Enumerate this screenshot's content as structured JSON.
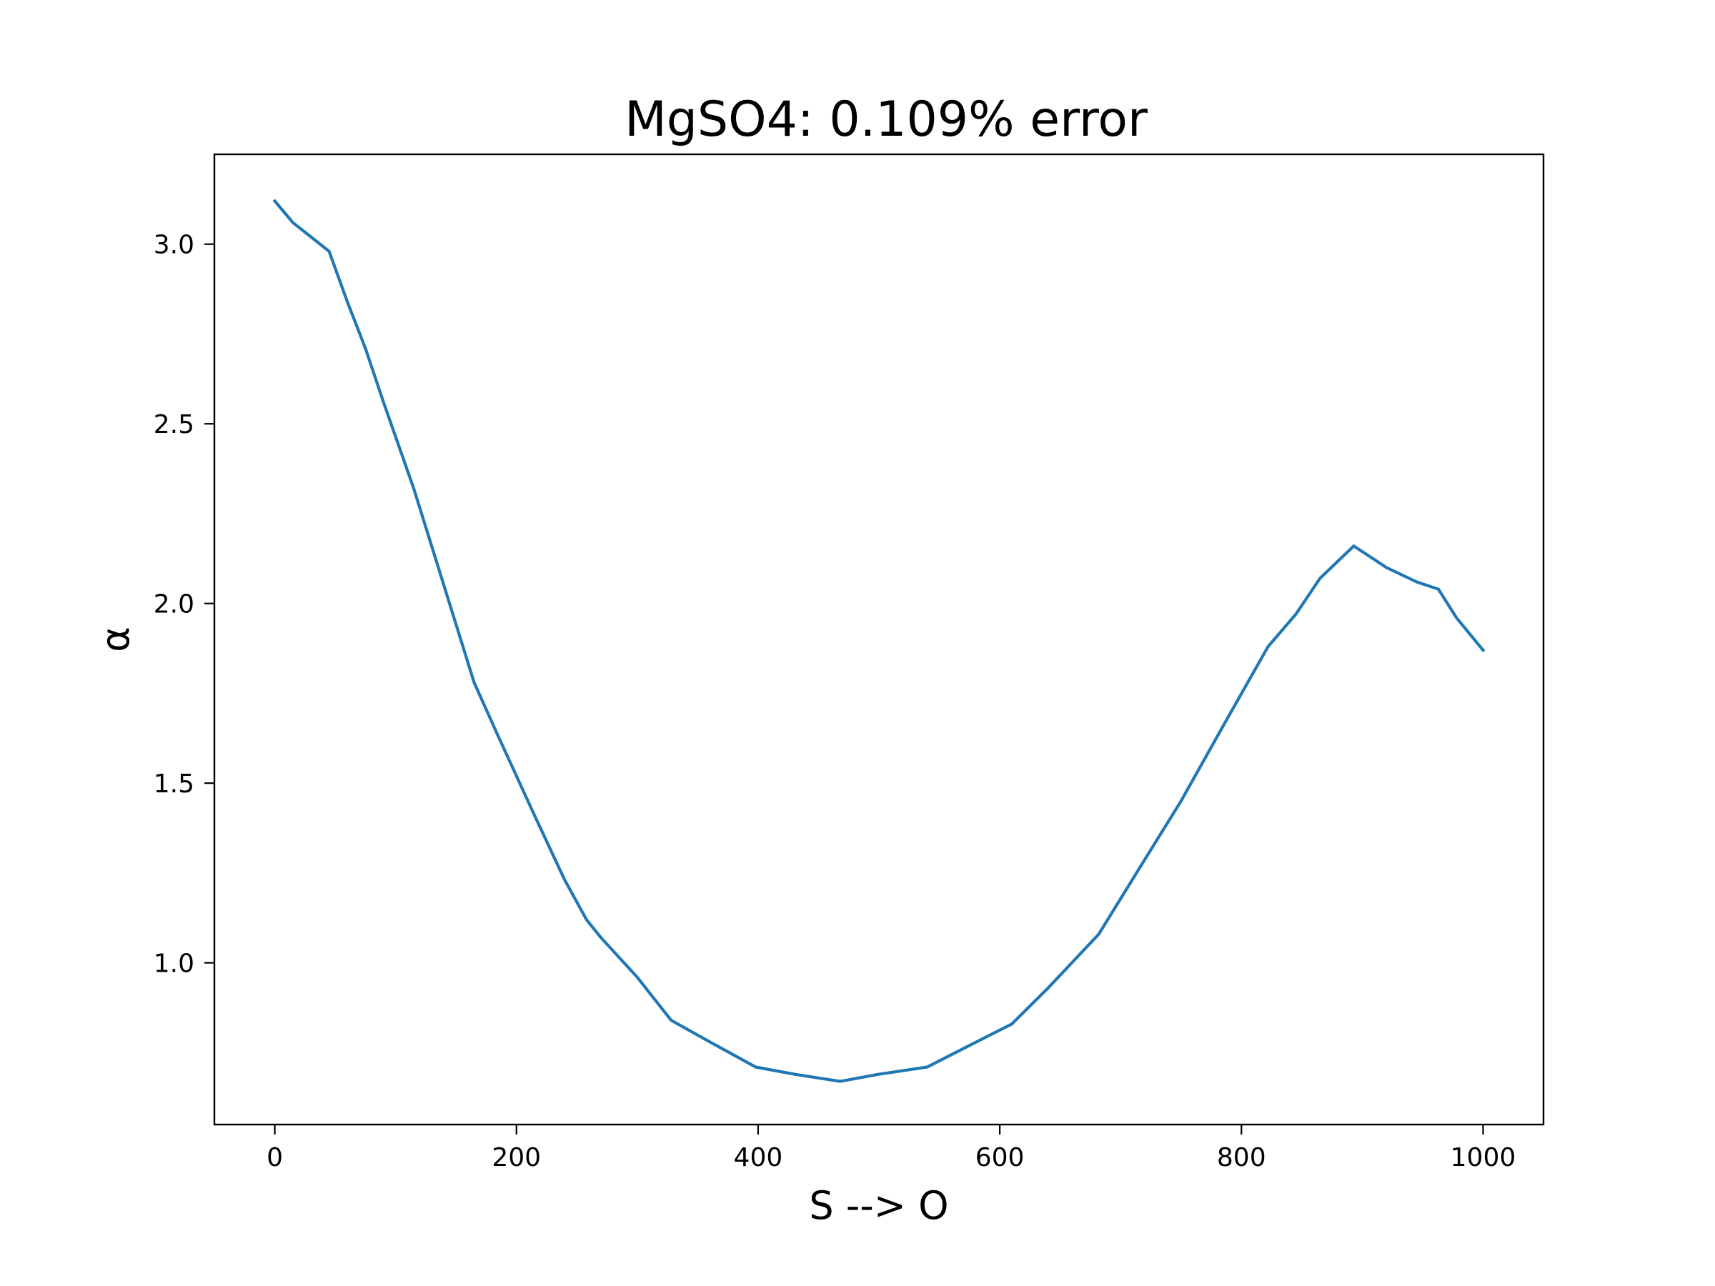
{
  "chart_data": {
    "type": "line",
    "title": "MgSO4: 0.109% error",
    "xlabel": "S --> O",
    "ylabel": "α",
    "xlim": [
      -50,
      1050
    ],
    "ylim": [
      0.55,
      3.25
    ],
    "xticks": [
      0,
      200,
      400,
      600,
      800,
      1000
    ],
    "xtick_labels": [
      "0",
      "200",
      "400",
      "600",
      "800",
      "1000"
    ],
    "yticks": [
      1.0,
      1.5,
      2.0,
      2.5,
      3.0
    ],
    "ytick_labels": [
      "1.0",
      "1.5",
      "2.0",
      "2.5",
      "3.0"
    ],
    "grid": false,
    "legend": false,
    "colors": {
      "line": "#1f77b4",
      "axes": "#000000",
      "background": "#ffffff"
    },
    "series": [
      {
        "x": [
          0,
          15,
          30,
          45,
          60,
          75,
          90,
          115,
          140,
          165,
          185,
          215,
          240,
          258,
          270,
          300,
          328,
          360,
          398,
          430,
          468,
          500,
          540,
          575,
          610,
          640,
          668,
          682,
          715,
          750,
          785,
          822,
          845,
          865,
          893,
          920,
          945,
          963,
          978,
          1000
        ],
        "y": [
          3.12,
          3.06,
          3.02,
          2.98,
          2.84,
          2.71,
          2.56,
          2.32,
          2.05,
          1.78,
          1.63,
          1.41,
          1.23,
          1.12,
          1.07,
          0.96,
          0.84,
          0.78,
          0.71,
          0.69,
          0.67,
          0.69,
          0.71,
          0.77,
          0.83,
          0.93,
          1.03,
          1.08,
          1.26,
          1.45,
          1.66,
          1.88,
          1.97,
          2.07,
          2.16,
          2.1,
          2.06,
          2.04,
          1.96,
          1.87
        ]
      }
    ]
  }
}
